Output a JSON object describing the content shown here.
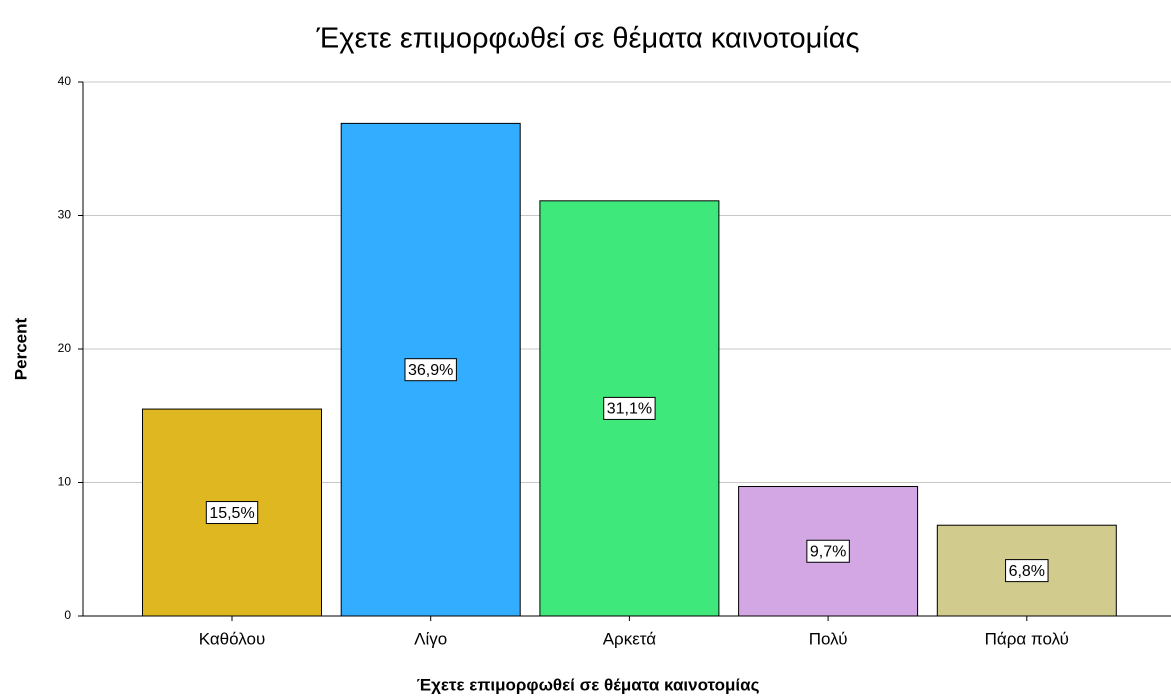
{
  "chart_data": {
    "type": "bar",
    "title": "Έχετε επιμορφωθεί σε θέματα καινοτομίας",
    "x_label": "Έχετε επιμορφωθεί σε θέματα καινοτομίας",
    "y_label": "Percent",
    "categories": [
      "Καθόλου",
      "Λίγο",
      "Αρκετά",
      "Πολύ",
      "Πάρα πολύ"
    ],
    "values": [
      15.5,
      36.9,
      31.1,
      9.7,
      6.8
    ],
    "value_labels": [
      "15,5%",
      "36,9%",
      "31,1%",
      "9,7%",
      "6,8%"
    ],
    "colors": [
      "#dfb821",
      "#33adff",
      "#3ee87b",
      "#d3a7e3",
      "#d1cb8e"
    ],
    "ylim": [
      0,
      40
    ],
    "yticks": [
      0,
      10,
      20,
      30,
      40
    ],
    "grid": true
  }
}
